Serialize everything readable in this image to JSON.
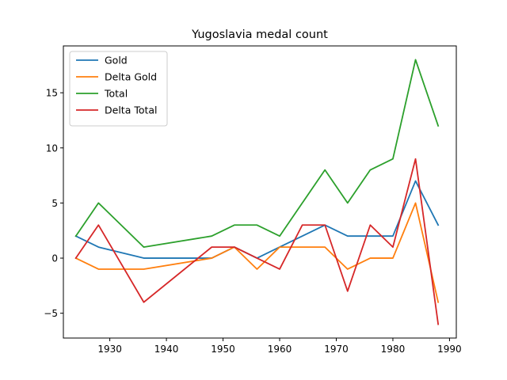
{
  "chart_data": {
    "type": "line",
    "title": "Yugoslavia medal count",
    "xlabel": "",
    "ylabel": "",
    "xlim": [
      1921.8,
      1991.2
    ],
    "ylim": [
      -7.25,
      19.25
    ],
    "xticks": [
      1930,
      1940,
      1950,
      1960,
      1970,
      1980,
      1990
    ],
    "yticks": [
      -5,
      0,
      5,
      10,
      15
    ],
    "grid": false,
    "legend_position": "top-left",
    "x": [
      1924,
      1928,
      1936,
      1948,
      1952,
      1956,
      1960,
      1964,
      1968,
      1972,
      1976,
      1980,
      1984,
      1988
    ],
    "series": [
      {
        "name": "Gold",
        "color": "#1f77b4",
        "values": [
          2,
          1,
          0,
          0,
          1,
          0,
          1,
          2,
          3,
          2,
          2,
          2,
          7,
          3
        ]
      },
      {
        "name": "Delta Gold",
        "color": "#ff7f0e",
        "values": [
          0,
          -1,
          -1,
          0,
          1,
          -1,
          1,
          1,
          1,
          -1,
          0,
          0,
          5,
          -4
        ]
      },
      {
        "name": "Total",
        "color": "#2ca02c",
        "values": [
          2,
          5,
          1,
          2,
          3,
          3,
          2,
          5,
          8,
          5,
          8,
          9,
          18,
          12
        ]
      },
      {
        "name": "Delta Total",
        "color": "#d62728",
        "values": [
          0,
          3,
          -4,
          1,
          1,
          0,
          -1,
          3,
          3,
          -3,
          3,
          1,
          9,
          -6
        ]
      }
    ]
  }
}
